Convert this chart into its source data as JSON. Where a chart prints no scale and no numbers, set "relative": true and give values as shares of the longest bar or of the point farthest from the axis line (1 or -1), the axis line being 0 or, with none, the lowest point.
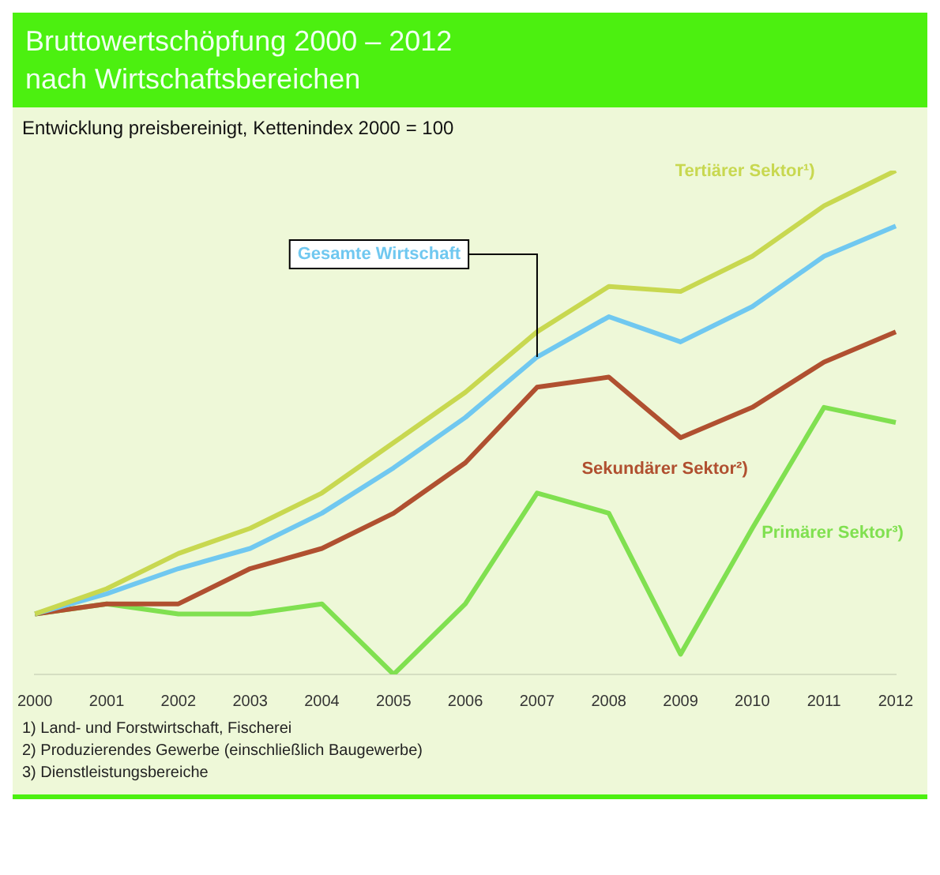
{
  "chart_data": {
    "type": "line",
    "title": "Bruttowertschöpfung 2000 – 2012\nnach Wirtschaftsbereichen",
    "subtitle": "Entwicklung preisbereinigt, Kettenindex 2000 = 100",
    "categories": [
      "2000",
      "2001",
      "2002",
      "2003",
      "2004",
      "2005",
      "2006",
      "2007",
      "2008",
      "2009",
      "2010",
      "2011",
      "2012"
    ],
    "relative": true,
    "tick_labels": "x",
    "grid": false,
    "legend": false,
    "marker": "none",
    "series": [
      {
        "name": "Tertiärer Sektor¹)",
        "color": "#c8d850",
        "values": [
          0.12,
          0.17,
          0.24,
          0.29,
          0.36,
          0.46,
          0.56,
          0.68,
          0.77,
          0.76,
          0.83,
          0.93,
          1
        ]
      },
      {
        "name": "Gesamte Wirtschaft",
        "color": "#70c8f0",
        "values": [
          0.12,
          0.16,
          0.21,
          0.25,
          0.32,
          0.41,
          0.51,
          0.63,
          0.71,
          0.66,
          0.73,
          0.83,
          0.89
        ]
      },
      {
        "name": "Sekundärer Sektor²)",
        "color": "#b05030",
        "values": [
          0.12,
          0.14,
          0.14,
          0.21,
          0.25,
          0.32,
          0.42,
          0.57,
          0.59,
          0.47,
          0.53,
          0.62,
          0.68
        ]
      },
      {
        "name": "Primärer Sektor³)",
        "color": "#80e050",
        "values": [
          0.12,
          0.14,
          0.12,
          0.12,
          0.14,
          0,
          0.14,
          0.36,
          0.32,
          0.04,
          0.29,
          0.53,
          0.5
        ]
      }
    ],
    "annotations": [
      "1) Land- und Forstwirtschaft, Fischerei",
      "2) Produzierendes Gewerbe (einschließlich Baugewerbe)",
      "3) Dienstleistungsbereiche"
    ]
  }
}
